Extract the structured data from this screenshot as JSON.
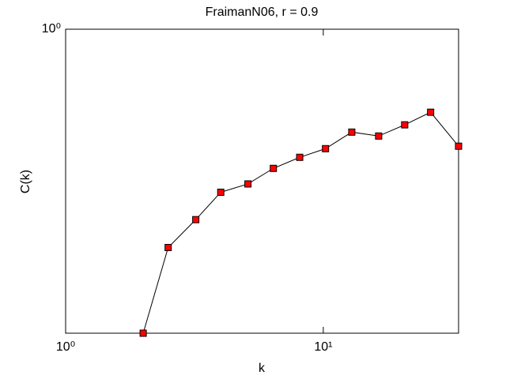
{
  "chart_data": {
    "type": "line",
    "title": "FraimanN06, r = 0.9",
    "xlabel": "k",
    "ylabel": "C(k)",
    "xscale": "log",
    "yscale": "log",
    "x": [
      2,
      2.5,
      3.2,
      4,
      5.1,
      6.4,
      8.1,
      10.2,
      12.9,
      16.4,
      20.7,
      26.1,
      33.5
    ],
    "series": [
      {
        "color": "#000000",
        "marker_color": "#ff0000",
        "values": [
          0.194,
          0.308,
          0.358,
          0.415,
          0.434,
          0.472,
          0.501,
          0.525,
          0.574,
          0.562,
          0.597,
          0.639,
          0.532
        ]
      }
    ],
    "xlim": [
      1,
      33.5
    ],
    "ylim": [
      0.194,
      1
    ],
    "xticks": [
      {
        "value": 1,
        "label": "10⁰"
      },
      {
        "value": 10,
        "label": "10¹"
      }
    ],
    "yticks": [
      {
        "value": 1,
        "label": "10⁰"
      }
    ]
  }
}
